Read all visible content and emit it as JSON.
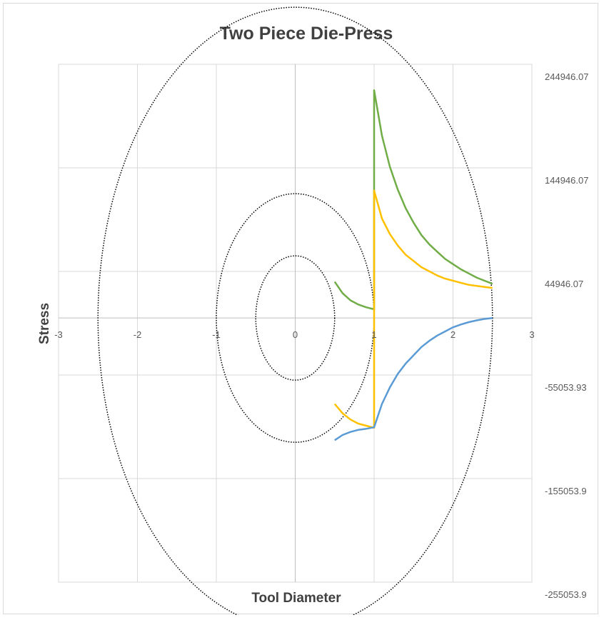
{
  "chart_data": {
    "type": "scatter",
    "title": "Two Piece Die-Press",
    "xlabel": "Tool Diameter",
    "ylabel": "Stress",
    "xlim": [
      -3,
      3
    ],
    "ylim": [
      -255053.93,
      244946.07
    ],
    "x_ticks": [
      -3,
      -2,
      -1,
      0,
      1,
      2,
      3
    ],
    "x_tick_labels": [
      "-3",
      "-2",
      "-1",
      "0",
      "1",
      "2",
      "3"
    ],
    "y_ticks": [
      244946.07,
      144946.07,
      44946.07,
      -55053.93,
      -155053.93,
      -255053.93
    ],
    "y_tick_labels": [
      "244946.07",
      "144946.07",
      "44946.07",
      "-55053.93",
      "-155053.9",
      "-255053.9"
    ],
    "grid": true,
    "legend": "none",
    "circles": [
      {
        "name": "inner-circle",
        "radius": 0.5,
        "style": "dotted",
        "color": "#000000"
      },
      {
        "name": "middle-circle",
        "radius": 1.0,
        "style": "dotted",
        "color": "#000000"
      },
      {
        "name": "outer-circle",
        "radius": 2.5,
        "style": "dotted",
        "color": "#000000"
      }
    ],
    "series": [
      {
        "color": "#70ad47",
        "x": [
          0.5,
          0.6,
          0.7,
          0.8,
          0.9,
          1.0,
          1.0,
          1.0,
          1.1,
          1.2,
          1.3,
          1.4,
          1.5,
          1.6,
          1.7,
          1.8,
          1.9,
          2.0,
          2.1,
          2.2,
          2.3,
          2.4,
          2.5
        ],
        "y": [
          35000,
          24000,
          17000,
          13000,
          10300,
          8400,
          220000,
          220000,
          176000,
          146000,
          124000,
          106000,
          92000,
          80000,
          71000,
          64000,
          57000,
          52000,
          47000,
          43000,
          39000,
          36000,
          33000
        ]
      },
      {
        "color": "#ffc000",
        "x": [
          0.5,
          0.6,
          0.7,
          0.8,
          0.9,
          1.0,
          1.0,
          1.0,
          1.1,
          1.2,
          1.3,
          1.4,
          1.5,
          1.6,
          1.7,
          1.8,
          1.9,
          2.0,
          2.1,
          2.2,
          2.3,
          2.4,
          2.5
        ],
        "y": [
          -83000,
          -92000,
          -98000,
          -102000,
          -104000,
          -106000,
          0,
          123000,
          96000,
          81000,
          70000,
          61000,
          55000,
          49000,
          45000,
          41000,
          38000,
          36000,
          34000,
          32000,
          31000,
          30000,
          29000
        ]
      },
      {
        "color": "#5b9bd5",
        "x": [
          0.5,
          0.6,
          0.7,
          0.8,
          0.9,
          1.0,
          1.1,
          1.2,
          1.3,
          1.4,
          1.5,
          1.6,
          1.7,
          1.8,
          1.9,
          2.0,
          2.1,
          2.2,
          2.3,
          2.4,
          2.5
        ],
        "y": [
          -118000,
          -113000,
          -110000,
          -108000,
          -107000,
          -105500,
          -83000,
          -67000,
          -54000,
          -44000,
          -36000,
          -28000,
          -22000,
          -17000,
          -13000,
          -9000,
          -6300,
          -4000,
          -2300,
          -900,
          0
        ]
      }
    ]
  }
}
